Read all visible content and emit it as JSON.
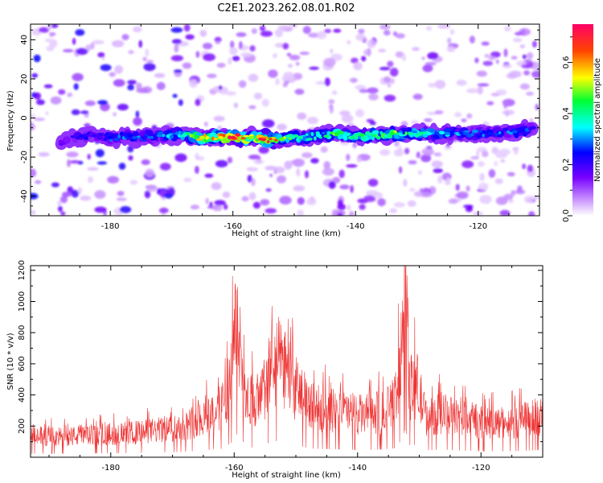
{
  "title": "C2E1.2023.262.08.01.R02",
  "chart_data": [
    {
      "type": "heatmap",
      "xlabel": "Height of straight line (km)",
      "ylabel": "Frequency (Hz)",
      "xlim": [
        -193,
        -110
      ],
      "ylim": [
        -50,
        48
      ],
      "xticks": [
        -180,
        -160,
        -140,
        -120
      ],
      "yticks": [
        -40,
        -20,
        0,
        20,
        40
      ],
      "colorbar": {
        "label": "Normalized spectral amplitude",
        "range": [
          0,
          0.75
        ],
        "ticks": [
          0.0,
          0.2,
          0.4,
          0.6
        ]
      },
      "ridge": [
        {
          "x": -188,
          "y": -12,
          "v": 0.15
        },
        {
          "x": -184,
          "y": -9,
          "v": 0.22
        },
        {
          "x": -180,
          "y": -10,
          "v": 0.25
        },
        {
          "x": -176,
          "y": -10,
          "v": 0.28
        },
        {
          "x": -172,
          "y": -9,
          "v": 0.3
        },
        {
          "x": -168,
          "y": -9,
          "v": 0.38
        },
        {
          "x": -165,
          "y": -10,
          "v": 0.52
        },
        {
          "x": -162,
          "y": -10,
          "v": 0.55
        },
        {
          "x": -160,
          "y": -10,
          "v": 0.72
        },
        {
          "x": -157,
          "y": -10,
          "v": 0.5
        },
        {
          "x": -155,
          "y": -11,
          "v": 0.7
        },
        {
          "x": -152,
          "y": -11,
          "v": 0.48
        },
        {
          "x": -149,
          "y": -10,
          "v": 0.4
        },
        {
          "x": -146,
          "y": -9,
          "v": 0.35
        },
        {
          "x": -143,
          "y": -8,
          "v": 0.45
        },
        {
          "x": -140,
          "y": -9,
          "v": 0.4
        },
        {
          "x": -137,
          "y": -9,
          "v": 0.42
        },
        {
          "x": -134,
          "y": -8,
          "v": 0.45
        },
        {
          "x": -131,
          "y": -8,
          "v": 0.4
        },
        {
          "x": -128,
          "y": -8,
          "v": 0.35
        },
        {
          "x": -125,
          "y": -8,
          "v": 0.3
        },
        {
          "x": -122,
          "y": -8,
          "v": 0.28
        },
        {
          "x": -118,
          "y": -8,
          "v": 0.26
        },
        {
          "x": -114,
          "y": -7,
          "v": 0.28
        },
        {
          "x": -111,
          "y": -5,
          "v": 0.22
        }
      ]
    },
    {
      "type": "line",
      "xlabel": "Height of straight line (km)",
      "ylabel": "SNR (10 * v/v)",
      "xlim": [
        -193,
        -110
      ],
      "ylim": [
        0,
        1230
      ],
      "xticks": [
        -180,
        -160,
        -140,
        -120
      ],
      "yticks": [
        200,
        400,
        600,
        800,
        1000,
        1200
      ],
      "color": "#ee3333",
      "series": [
        {
          "x": [
            -193,
            -188,
            -184,
            -180,
            -176,
            -172,
            -168,
            -165,
            -162,
            -160.5,
            -159.5,
            -158,
            -156,
            -154.5,
            -153,
            -151.5,
            -150,
            -147,
            -145,
            -142,
            -139,
            -136,
            -134,
            -133,
            -132.3,
            -131.5,
            -130.5,
            -129,
            -126,
            -123,
            -120,
            -117,
            -114,
            -111,
            -110
          ],
          "values": [
            150,
            150,
            160,
            170,
            180,
            200,
            230,
            300,
            360,
            600,
            1000,
            450,
            380,
            600,
            700,
            650,
            500,
            360,
            350,
            330,
            310,
            330,
            380,
            700,
            1150,
            500,
            550,
            300,
            320,
            280,
            260,
            250,
            260,
            300,
            300
          ]
        }
      ]
    }
  ]
}
